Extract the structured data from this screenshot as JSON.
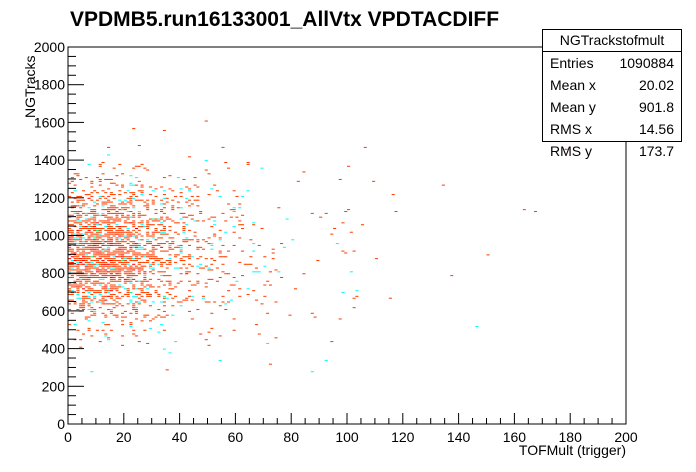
{
  "chart_data": {
    "type": "heatmap",
    "title": "VPDMB5.run16133001_AllVtx VPDTACDIFF",
    "xlabel": "TOFMult (trigger)",
    "ylabel": "NGTracks",
    "xlim": [
      0,
      200
    ],
    "ylim": [
      0,
      2000
    ],
    "xticks": [
      "0",
      "20",
      "40",
      "60",
      "80",
      "100",
      "120",
      "140",
      "160",
      "180",
      "200"
    ],
    "yticks": [
      "0",
      "200",
      "400",
      "600",
      "800",
      "1000",
      "1200",
      "1400",
      "1600",
      "1800",
      "2000"
    ],
    "colormap": [
      "#00ffff",
      "#00ff80",
      "#80ff00",
      "#ffff00",
      "#ffa000",
      "#ff4000",
      "#ff0000"
    ],
    "distribution": {
      "peak_x": 12,
      "peak_y": 900,
      "mean_x": 20.02,
      "mean_y": 901.8,
      "rms_x": 14.56,
      "rms_y": 173.7,
      "entries": 1090884
    },
    "stats_box": {
      "name": "NGTrackstofmult",
      "rows": [
        {
          "label": "Entries",
          "value": "1090884"
        },
        {
          "label": "Mean x",
          "value": "20.02"
        },
        {
          "label": "Mean y",
          "value": "901.8"
        },
        {
          "label": "RMS x",
          "value": "14.56"
        },
        {
          "label": "RMS y",
          "value": "173.7"
        }
      ]
    }
  }
}
